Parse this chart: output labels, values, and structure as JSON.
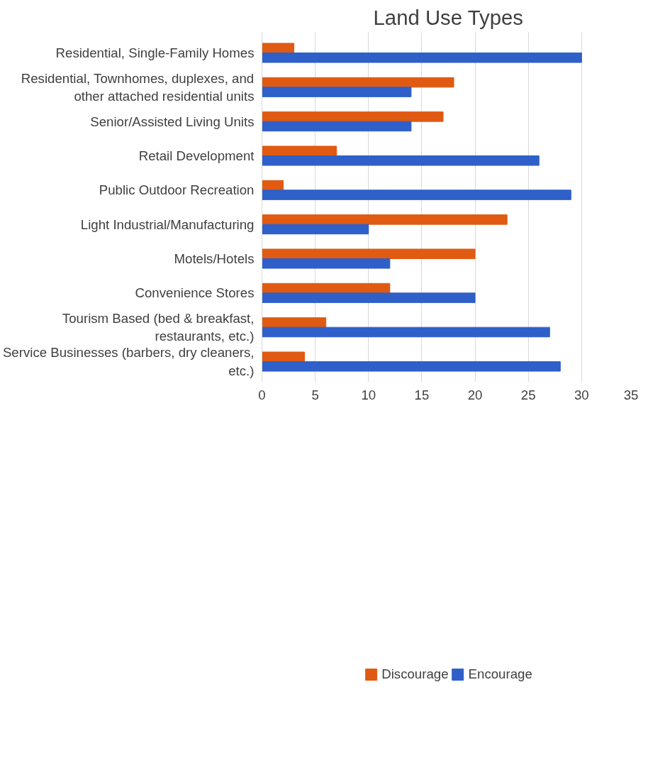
{
  "chart_data": {
    "type": "bar",
    "orientation": "horizontal",
    "title": "Land Use Types",
    "categories": [
      "Residential, Single-Family Homes",
      "Residential, Townhomes, duplexes, and other attached residential units",
      "Senior/Assisted Living Units",
      "Retail Development",
      "Public Outdoor Recreation",
      "Light Industrial/Manufacturing",
      "Motels/Hotels",
      "Convenience Stores",
      "Tourism Based (bed & breakfast, restaurants, etc.)",
      "Service Businesses (barbers, dry cleaners, etc.)"
    ],
    "series": [
      {
        "name": "Discourage",
        "color": "#e05a12",
        "values": [
          3,
          18,
          17,
          7,
          2,
          23,
          20,
          12,
          6,
          4
        ]
      },
      {
        "name": "Encourage",
        "color": "#2f5fc8",
        "values": [
          30,
          14,
          14,
          26,
          29,
          10,
          12,
          20,
          27,
          28
        ]
      }
    ],
    "xlim": [
      0,
      35
    ],
    "xticks": [
      0,
      5,
      10,
      15,
      20,
      25,
      30,
      35
    ],
    "grid": "x",
    "legend": "bottom"
  }
}
